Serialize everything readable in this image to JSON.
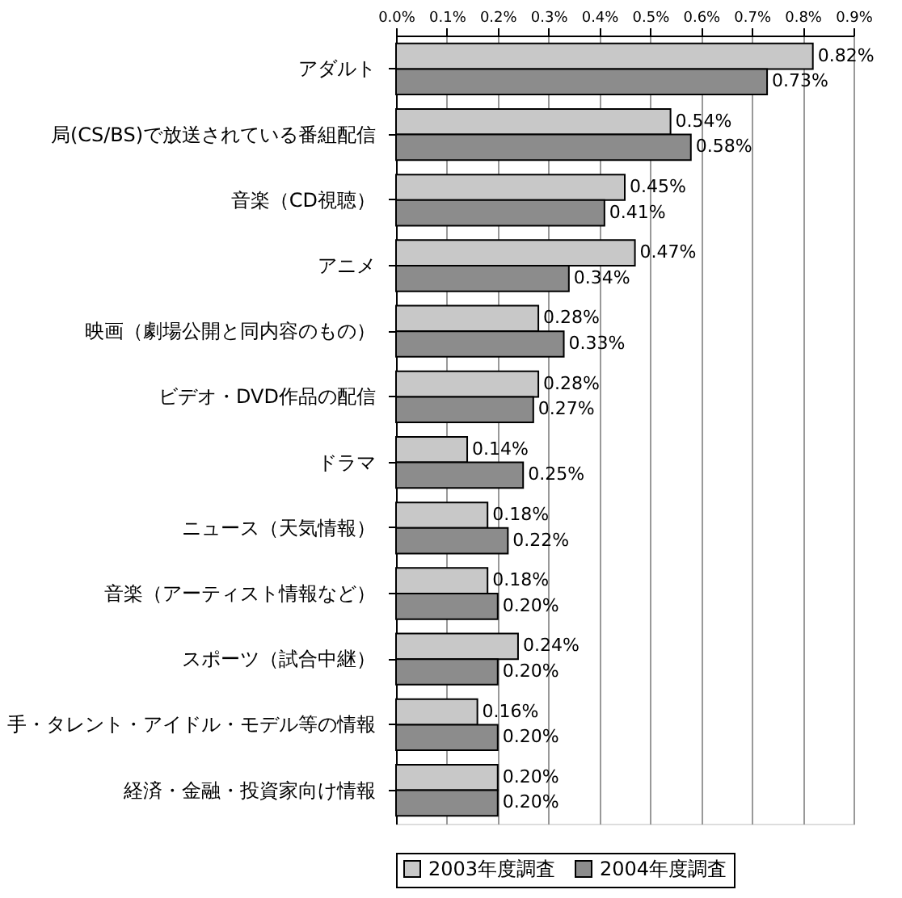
{
  "chart_data": {
    "type": "bar",
    "orientation": "horizontal",
    "categories": [
      "アダルト",
      "局(CS/BS)で放送されている番組配信",
      "音楽（CD視聴）",
      "アニメ",
      "映画（劇場公開と同内容のもの）",
      "ビデオ・DVD作品の配信",
      "ドラマ",
      "ニュース（天気情報）",
      "音楽（アーティスト情報など）",
      "スポーツ（試合中継）",
      "手・タレント・アイドル・モデル等の情報",
      "経済・金融・投資家向け情報"
    ],
    "series": [
      {
        "name": "2003年度調査",
        "color": "#c8c8c8",
        "values": [
          0.82,
          0.54,
          0.45,
          0.47,
          0.28,
          0.28,
          0.14,
          0.18,
          0.18,
          0.24,
          0.16,
          0.2
        ],
        "value_labels": [
          "0.82%",
          "0.54%",
          "0.45%",
          "0.47%",
          "0.28%",
          "0.28%",
          "0.14%",
          "0.18%",
          "0.18%",
          "0.24%",
          "0.16%",
          "0.20%"
        ]
      },
      {
        "name": "2004年度調査",
        "color": "#8c8c8c",
        "values": [
          0.73,
          0.58,
          0.41,
          0.34,
          0.33,
          0.27,
          0.25,
          0.22,
          0.2,
          0.2,
          0.2,
          0.2
        ],
        "value_labels": [
          "0.73%",
          "0.58%",
          "0.41%",
          "0.34%",
          "0.33%",
          "0.27%",
          "0.25%",
          "0.22%",
          "0.20%",
          "0.20%",
          "0.20%",
          "0.20%"
        ]
      }
    ],
    "xlim": [
      0,
      0.9
    ],
    "xticks": [
      {
        "value": 0,
        "label": "0.0%"
      },
      {
        "value": 0.1,
        "label": "0.1%"
      },
      {
        "value": 0.2,
        "label": "0.2%"
      },
      {
        "value": 0.3,
        "label": "0.3%"
      },
      {
        "value": 0.4,
        "label": "0.4%"
      },
      {
        "value": 0.5,
        "label": "0.5%"
      },
      {
        "value": 0.6,
        "label": "0.6%"
      },
      {
        "value": 0.7,
        "label": "0.7%"
      },
      {
        "value": 0.8,
        "label": "0.8%"
      },
      {
        "value": 0.9,
        "label": "0.9%"
      }
    ],
    "grid": "x",
    "legend": "bottom"
  }
}
